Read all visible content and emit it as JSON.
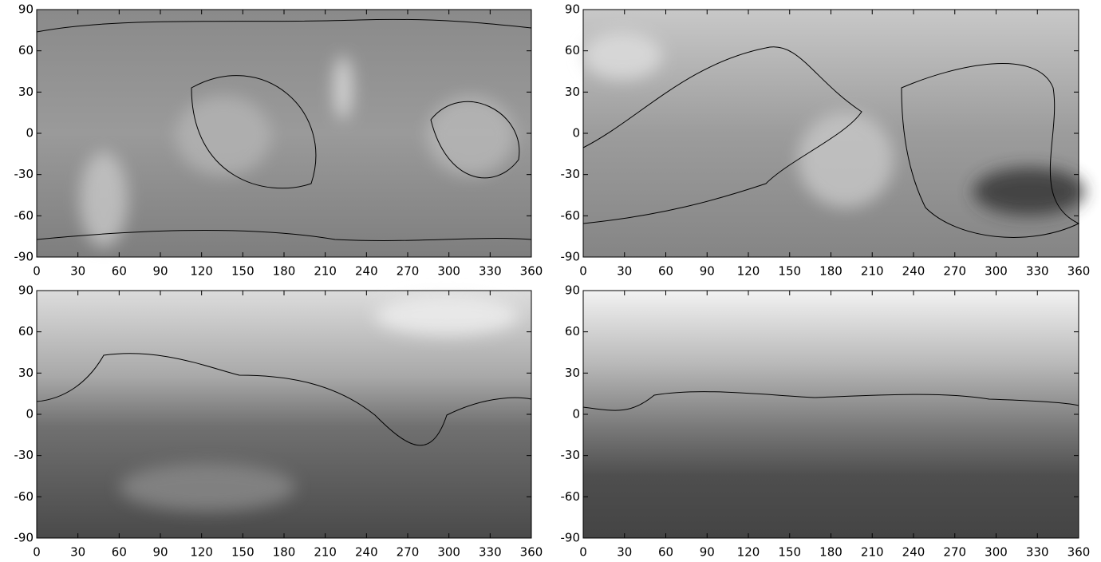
{
  "chart_data": [
    {
      "type": "contour",
      "xlim": [
        0,
        360
      ],
      "ylim": [
        -90,
        90
      ],
      "xticks": [
        0,
        30,
        60,
        90,
        120,
        150,
        180,
        210,
        240,
        270,
        300,
        330,
        360
      ],
      "yticks": [
        -90,
        -60,
        -30,
        0,
        30,
        60,
        90
      ]
    },
    {
      "type": "contour",
      "xlim": [
        0,
        360
      ],
      "ylim": [
        -90,
        90
      ],
      "xticks": [
        0,
        30,
        60,
        90,
        120,
        150,
        180,
        210,
        240,
        270,
        300,
        330,
        360
      ],
      "yticks": [
        -90,
        -60,
        -30,
        0,
        30,
        60,
        90
      ]
    },
    {
      "type": "contour",
      "xlim": [
        0,
        360
      ],
      "ylim": [
        -90,
        90
      ],
      "xticks": [
        0,
        30,
        60,
        90,
        120,
        150,
        180,
        210,
        240,
        270,
        300,
        330,
        360
      ],
      "yticks": [
        -90,
        -60,
        -30,
        0,
        30,
        60,
        90
      ]
    },
    {
      "type": "contour",
      "xlim": [
        0,
        360
      ],
      "ylim": [
        -90,
        90
      ],
      "xticks": [
        0,
        30,
        60,
        90,
        120,
        150,
        180,
        210,
        240,
        270,
        300,
        330,
        360
      ],
      "yticks": [
        -90,
        -60,
        -30,
        0,
        30,
        60,
        90
      ]
    }
  ]
}
